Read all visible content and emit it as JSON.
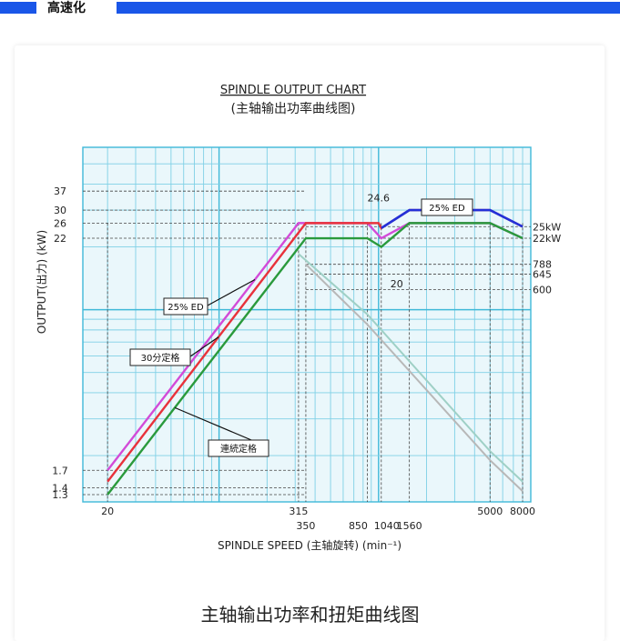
{
  "header": {
    "title": "高速化"
  },
  "chart_data": {
    "type": "line",
    "title": "SPINDLE OUTPUT CHART",
    "subtitle": "(主轴输出功率曲线图)",
    "xlabel": "SPINDLE SPEED (主轴旋转) (min⁻¹)",
    "ylabel": "OUTPUT(出力) (kW)",
    "x_scale": "log",
    "y_scale": "log",
    "xlim": [
      14,
      9000
    ],
    "ylim": [
      1.2,
      60
    ],
    "x_ticks": [
      {
        "value": 20,
        "label": "20"
      },
      {
        "value": 315,
        "label": "315"
      },
      {
        "value": 350,
        "label": "350"
      },
      {
        "value": 850,
        "label": "850"
      },
      {
        "value": 1040,
        "label": "1040"
      },
      {
        "value": 1560,
        "label": "1560"
      },
      {
        "value": 5000,
        "label": "5000"
      },
      {
        "value": 8000,
        "label": "8000"
      }
    ],
    "y_ticks_left": [
      {
        "value": 37,
        "label": "37"
      },
      {
        "value": 30,
        "label": "30"
      },
      {
        "value": 26,
        "label": "26"
      },
      {
        "value": 22,
        "label": "22"
      },
      {
        "value": 1.7,
        "label": "1.7"
      },
      {
        "value": 1.4,
        "label": "1.4"
      },
      {
        "value": 1.3,
        "label": "1.3"
      }
    ],
    "right_labels": [
      {
        "value": 25,
        "label": "25kW"
      },
      {
        "value": 22,
        "label": "22kW"
      },
      {
        "value": 16.5,
        "label": "788"
      },
      {
        "value": 14.8,
        "label": "645"
      },
      {
        "value": 12.5,
        "label": "600"
      }
    ],
    "annotations": [
      {
        "text": "24.6",
        "x": 1000,
        "y": 33
      },
      {
        "text": "20",
        "x": 1300,
        "y": 12.8
      }
    ],
    "series": [
      {
        "name": "25% ED",
        "color": "#d24bd8",
        "x": [
          20,
          315,
          850,
          1040,
          1560,
          5000,
          8000
        ],
        "y": [
          1.7,
          26,
          26,
          22,
          26,
          26,
          22
        ]
      },
      {
        "name": "30分定格",
        "color": "#e8323c",
        "x": [
          20,
          350,
          1000,
          1040,
          1560,
          5000,
          8000
        ],
        "y": [
          1.5,
          26,
          26,
          24.6,
          30,
          30,
          25
        ]
      },
      {
        "name": "連続定格",
        "color": "#2a9a3c",
        "x": [
          20,
          350,
          850,
          1040,
          1560,
          5000,
          8000
        ],
        "y": [
          1.3,
          22,
          22,
          20,
          26,
          26,
          22
        ]
      }
    ],
    "upper_segment": {
      "name": "25% ED",
      "color": "#2330d8",
      "x": [
        1040,
        1560,
        5000,
        8000
      ],
      "y": [
        24.6,
        30,
        30,
        25
      ]
    },
    "torque_series": [
      {
        "color": "#b8b8b8",
        "x": [
          350,
          850,
          5000,
          8000
        ],
        "y": [
          16.5,
          8.5,
          1.9,
          1.35
        ]
      },
      {
        "color": "#9fd0c6",
        "x": [
          315,
          850,
          5000,
          8000
        ],
        "y": [
          18.5,
          9.5,
          2.1,
          1.5
        ]
      }
    ],
    "legend_boxes": [
      {
        "text": "25% ED",
        "for": 0
      },
      {
        "text": "30分定格",
        "for": 1
      },
      {
        "text": "連続定格",
        "for": 2
      }
    ],
    "top_box": {
      "text": "25% ED"
    }
  },
  "caption": "主轴输出功率和扭矩曲线图"
}
